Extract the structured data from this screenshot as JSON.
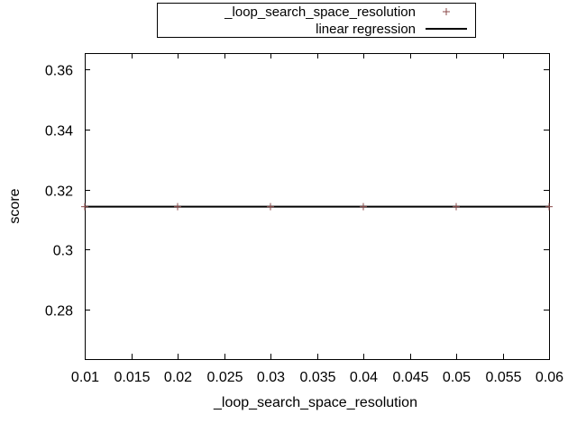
{
  "chart_data": {
    "type": "scatter",
    "xlabel": "_loop_search_space_resolution",
    "ylabel": "score",
    "xlim": [
      0.01,
      0.06
    ],
    "ylim": [
      0.2635,
      0.3655
    ],
    "x_ticks": [
      "0.01",
      "0.015",
      "0.02",
      "0.025",
      "0.03",
      "0.035",
      "0.04",
      "0.045",
      "0.05",
      "0.055",
      "0.06"
    ],
    "y_ticks": [
      "0.28",
      "0.3",
      "0.32",
      "0.34",
      "0.36"
    ],
    "grid": false,
    "legend_position": "top-center",
    "series": [
      {
        "name": "_loop_search_space_resolution",
        "kind": "points",
        "marker": "plus",
        "color": "#8b4a4a",
        "x": [
          0.01,
          0.02,
          0.03,
          0.04,
          0.05,
          0.06
        ],
        "y": [
          0.3143,
          0.3143,
          0.3143,
          0.3143,
          0.3143,
          0.3143
        ]
      },
      {
        "name": "linear regression",
        "kind": "line",
        "color": "#000000",
        "x": [
          0.01,
          0.06
        ],
        "y": [
          0.3143,
          0.3143
        ]
      }
    ]
  }
}
